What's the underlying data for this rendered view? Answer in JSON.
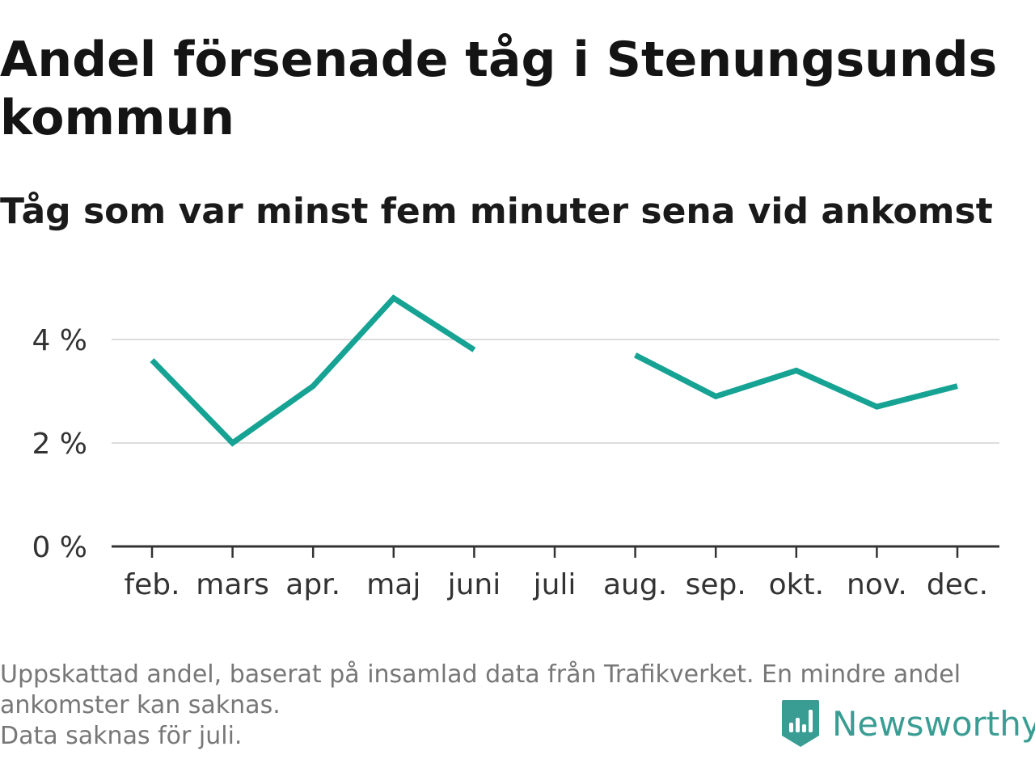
{
  "chart_data": {
    "type": "line",
    "title": "Andel försenade tåg i Stenungsunds kommun",
    "subtitle": "Tåg som var minst fem minuter sena vid ankomst",
    "categories": [
      "feb.",
      "mars",
      "apr.",
      "maj",
      "juni",
      "juli",
      "aug.",
      "sep.",
      "okt.",
      "nov.",
      "dec."
    ],
    "series": [
      {
        "values": [
          3.6,
          2.0,
          3.1,
          4.8,
          3.8,
          null,
          3.7,
          2.9,
          3.4,
          2.7,
          3.1
        ],
        "color": "#16a394"
      }
    ],
    "yticks": [
      {
        "value": 0,
        "label": "0 %"
      },
      {
        "value": 2,
        "label": "2 %"
      },
      {
        "value": 4,
        "label": "4 %"
      }
    ],
    "ylim": [
      0,
      5.2
    ],
    "grid": true
  },
  "footnote": {
    "line1": "Uppskattad andel, baserat på insamlad data från Trafikverket. En mindre andel ankomster kan saknas.",
    "line2": "Data saknas för juli."
  },
  "brand": {
    "name": "Newsworthy",
    "icon": "bar-chart-badge-icon",
    "color": "#3a9d93"
  }
}
